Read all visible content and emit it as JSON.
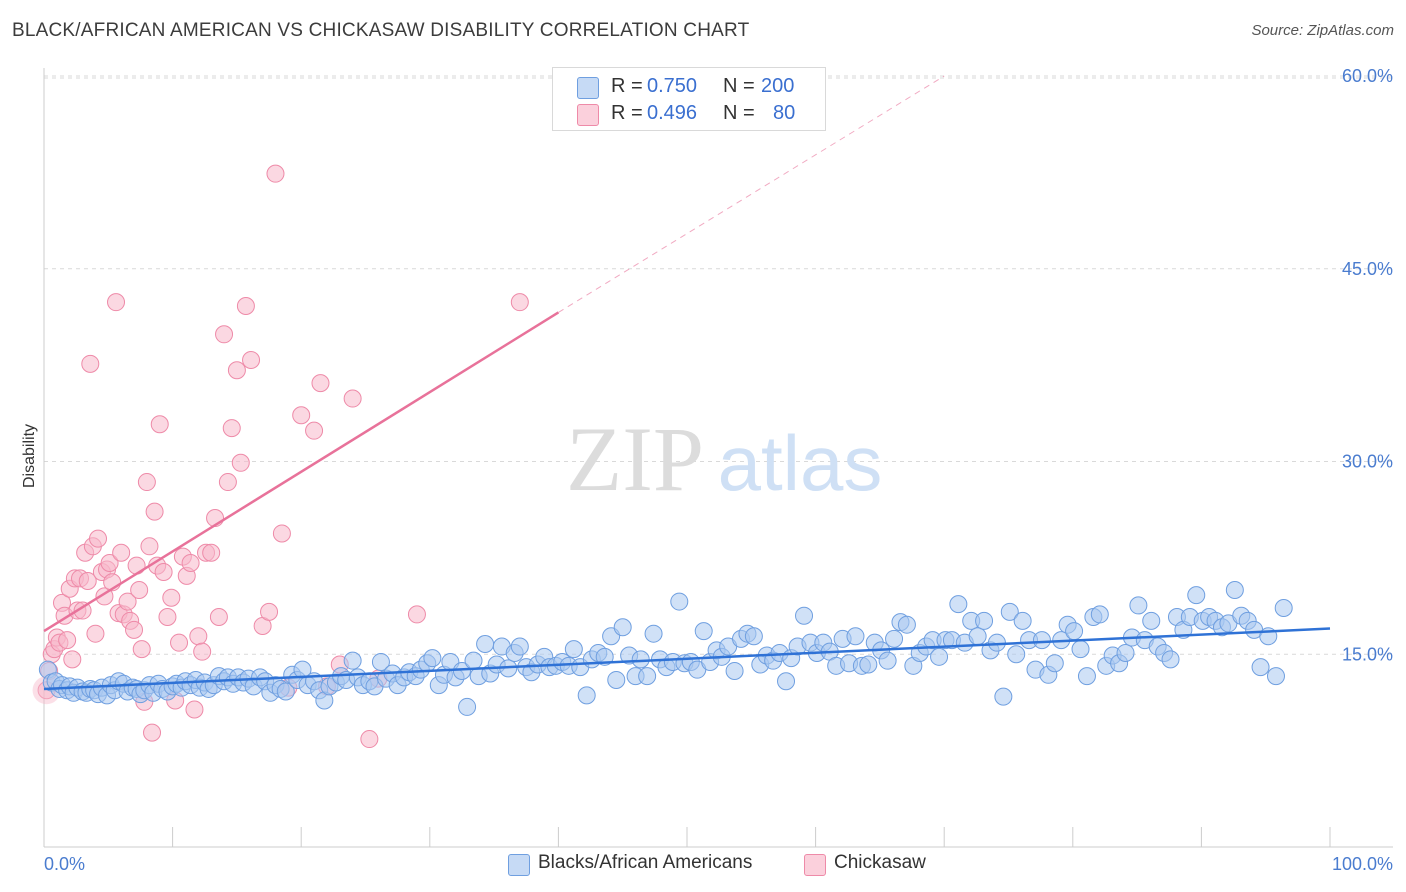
{
  "title": "BLACK/AFRICAN AMERICAN VS CHICKASAW DISABILITY CORRELATION CHART",
  "source": "Source: ZipAtlas.com",
  "watermark": {
    "zip": "ZIP",
    "atlas": "atlas"
  },
  "colors": {
    "blue_fill": "#aac8f0",
    "blue_stroke": "#6f9fe0",
    "blue_line": "#2f72d6",
    "pink_fill": "#f7b8ca",
    "pink_stroke": "#ee8aa8",
    "pink_line": "#e8729a",
    "grid": "#d9d9d9",
    "tick_label": "#4a7ccf"
  },
  "legend_top": [
    {
      "r_label": "R =",
      "r_value": "0.750",
      "n_label": "N =",
      "n_value": "200",
      "color": "#aac8f0"
    },
    {
      "r_label": "R =",
      "r_value": "0.496",
      "n_label": "N =",
      "n_value": "80",
      "color": "#f7b8ca"
    }
  ],
  "legend_bottom": [
    {
      "label": "Blacks/African Americans",
      "color": "#aac8f0"
    },
    {
      "label": "Chickasaw",
      "color": "#f7b8ca"
    }
  ],
  "chart_data": {
    "type": "scatter",
    "title": "BLACK/AFRICAN AMERICAN VS CHICKASAW DISABILITY CORRELATION CHART",
    "xlabel": "",
    "ylabel": "Disability",
    "xlim": [
      0,
      100
    ],
    "ylim": [
      0,
      66
    ],
    "x_tick_labels": [
      "0.0%",
      "100.0%"
    ],
    "y_ticks": [
      15,
      30,
      45,
      60
    ],
    "y_tick_labels": [
      "15.0%",
      "30.0%",
      "45.0%",
      "60.0%"
    ],
    "grid": "horizontal dashed",
    "legend": "top-center and bottom",
    "series": [
      {
        "name": "Blacks/African Americans",
        "r": 0.75,
        "n": 200,
        "trend": {
          "x": [
            0,
            100
          ],
          "y": [
            12.3,
            17.0
          ]
        },
        "points": [
          [
            0.3,
            13.8
          ],
          [
            0.6,
            12.8
          ],
          [
            0.9,
            12.9
          ],
          [
            1.2,
            12.3
          ],
          [
            1.4,
            12.6
          ],
          [
            1.8,
            12.2
          ],
          [
            2.0,
            12.5
          ],
          [
            2.3,
            12.0
          ],
          [
            2.6,
            12.4
          ],
          [
            3.0,
            12.1
          ],
          [
            3.3,
            12.0
          ],
          [
            3.6,
            12.3
          ],
          [
            3.9,
            12.2
          ],
          [
            4.2,
            11.9
          ],
          [
            4.5,
            12.4
          ],
          [
            4.9,
            11.8
          ],
          [
            5.2,
            12.6
          ],
          [
            5.5,
            12.2
          ],
          [
            5.8,
            12.9
          ],
          [
            6.2,
            12.7
          ],
          [
            6.5,
            12.1
          ],
          [
            6.9,
            12.4
          ],
          [
            7.2,
            12.3
          ],
          [
            7.5,
            11.9
          ],
          [
            7.8,
            12.2
          ],
          [
            8.2,
            12.6
          ],
          [
            8.5,
            12.0
          ],
          [
            8.9,
            12.7
          ],
          [
            9.2,
            12.3
          ],
          [
            9.6,
            12.1
          ],
          [
            10.0,
            12.5
          ],
          [
            10.3,
            12.7
          ],
          [
            10.7,
            12.4
          ],
          [
            11.0,
            12.9
          ],
          [
            11.4,
            12.6
          ],
          [
            11.8,
            13.0
          ],
          [
            12.1,
            12.4
          ],
          [
            12.5,
            12.8
          ],
          [
            12.8,
            12.3
          ],
          [
            13.2,
            12.6
          ],
          [
            13.6,
            13.3
          ],
          [
            14.0,
            12.9
          ],
          [
            14.3,
            13.2
          ],
          [
            14.7,
            12.7
          ],
          [
            15.1,
            13.2
          ],
          [
            15.5,
            12.8
          ],
          [
            15.9,
            13.1
          ],
          [
            16.3,
            12.5
          ],
          [
            16.8,
            13.2
          ],
          [
            17.2,
            12.9
          ],
          [
            17.6,
            12.0
          ],
          [
            18.0,
            12.6
          ],
          [
            18.4,
            12.3
          ],
          [
            18.8,
            12.1
          ],
          [
            19.3,
            13.4
          ],
          [
            19.7,
            13.0
          ],
          [
            20.1,
            13.8
          ],
          [
            20.5,
            12.6
          ],
          [
            21.0,
            12.9
          ],
          [
            21.4,
            12.2
          ],
          [
            21.8,
            11.4
          ],
          [
            22.2,
            12.5
          ],
          [
            22.7,
            12.8
          ],
          [
            23.1,
            13.3
          ],
          [
            23.5,
            13.0
          ],
          [
            24.0,
            14.5
          ],
          [
            24.4,
            13.2
          ],
          [
            24.8,
            12.6
          ],
          [
            25.3,
            12.9
          ],
          [
            25.7,
            12.5
          ],
          [
            26.2,
            14.4
          ],
          [
            26.6,
            13.1
          ],
          [
            27.1,
            13.5
          ],
          [
            27.5,
            12.6
          ],
          [
            28.0,
            13.2
          ],
          [
            28.4,
            13.6
          ],
          [
            28.9,
            13.3
          ],
          [
            29.3,
            13.8
          ],
          [
            29.8,
            14.3
          ],
          [
            30.2,
            14.7
          ],
          [
            30.7,
            12.6
          ],
          [
            31.1,
            13.4
          ],
          [
            31.6,
            14.4
          ],
          [
            32.0,
            13.2
          ],
          [
            32.5,
            13.7
          ],
          [
            32.9,
            10.9
          ],
          [
            33.4,
            14.5
          ],
          [
            33.8,
            13.3
          ],
          [
            34.3,
            15.8
          ],
          [
            34.7,
            13.5
          ],
          [
            35.2,
            14.2
          ],
          [
            35.6,
            15.6
          ],
          [
            36.1,
            13.9
          ],
          [
            36.6,
            15.1
          ],
          [
            37.0,
            15.6
          ],
          [
            37.5,
            14.0
          ],
          [
            37.9,
            13.6
          ],
          [
            38.4,
            14.2
          ],
          [
            38.9,
            14.8
          ],
          [
            39.3,
            14.0
          ],
          [
            39.8,
            14.1
          ],
          [
            40.3,
            14.4
          ],
          [
            40.8,
            14.1
          ],
          [
            41.2,
            15.4
          ],
          [
            41.7,
            14.0
          ],
          [
            42.2,
            11.8
          ],
          [
            42.6,
            14.6
          ],
          [
            43.1,
            15.1
          ],
          [
            43.6,
            14.8
          ],
          [
            44.1,
            16.4
          ],
          [
            44.5,
            13.0
          ],
          [
            45.0,
            17.1
          ],
          [
            45.5,
            14.9
          ],
          [
            46.0,
            13.3
          ],
          [
            46.4,
            14.6
          ],
          [
            46.9,
            13.3
          ],
          [
            47.4,
            16.6
          ],
          [
            47.9,
            14.6
          ],
          [
            48.4,
            14.0
          ],
          [
            48.9,
            14.4
          ],
          [
            49.4,
            19.1
          ],
          [
            49.8,
            14.3
          ],
          [
            50.3,
            14.4
          ],
          [
            50.8,
            13.8
          ],
          [
            51.3,
            16.8
          ],
          [
            51.8,
            14.4
          ],
          [
            52.3,
            15.3
          ],
          [
            52.7,
            14.8
          ],
          [
            53.2,
            15.6
          ],
          [
            53.7,
            13.7
          ],
          [
            54.2,
            16.2
          ],
          [
            54.7,
            16.6
          ],
          [
            55.2,
            16.4
          ],
          [
            55.7,
            14.2
          ],
          [
            56.2,
            14.9
          ],
          [
            56.7,
            14.5
          ],
          [
            57.2,
            15.1
          ],
          [
            57.7,
            12.9
          ],
          [
            58.1,
            14.7
          ],
          [
            58.6,
            15.6
          ],
          [
            59.1,
            18.0
          ],
          [
            59.6,
            15.9
          ],
          [
            60.1,
            15.1
          ],
          [
            60.6,
            15.9
          ],
          [
            61.1,
            15.2
          ],
          [
            61.6,
            14.1
          ],
          [
            62.1,
            16.2
          ],
          [
            62.6,
            14.3
          ],
          [
            63.1,
            16.4
          ],
          [
            63.6,
            14.1
          ],
          [
            64.1,
            14.2
          ],
          [
            64.6,
            15.9
          ],
          [
            65.1,
            15.3
          ],
          [
            65.6,
            14.5
          ],
          [
            66.1,
            16.2
          ],
          [
            66.6,
            17.5
          ],
          [
            67.1,
            17.3
          ],
          [
            67.6,
            14.1
          ],
          [
            68.1,
            15.1
          ],
          [
            68.6,
            15.6
          ],
          [
            69.1,
            16.1
          ],
          [
            69.6,
            14.8
          ],
          [
            70.1,
            16.1
          ],
          [
            70.6,
            16.1
          ],
          [
            71.1,
            18.9
          ],
          [
            71.6,
            15.9
          ],
          [
            72.1,
            17.6
          ],
          [
            72.6,
            16.4
          ],
          [
            73.1,
            17.6
          ],
          [
            73.6,
            15.3
          ],
          [
            74.1,
            15.9
          ],
          [
            74.6,
            11.7
          ],
          [
            75.1,
            18.3
          ],
          [
            75.6,
            15.0
          ],
          [
            76.1,
            17.6
          ],
          [
            76.6,
            16.1
          ],
          [
            77.1,
            13.8
          ],
          [
            77.6,
            16.1
          ],
          [
            78.1,
            13.4
          ],
          [
            78.6,
            14.3
          ],
          [
            79.1,
            16.1
          ],
          [
            79.6,
            17.3
          ],
          [
            80.1,
            16.8
          ],
          [
            80.6,
            15.4
          ],
          [
            81.1,
            13.3
          ],
          [
            81.6,
            17.9
          ],
          [
            82.1,
            18.1
          ],
          [
            82.6,
            14.1
          ],
          [
            83.1,
            14.9
          ],
          [
            83.6,
            14.3
          ],
          [
            84.1,
            15.1
          ],
          [
            84.6,
            16.3
          ],
          [
            85.1,
            18.8
          ],
          [
            85.6,
            16.1
          ],
          [
            86.1,
            17.6
          ],
          [
            86.6,
            15.6
          ],
          [
            87.1,
            15.1
          ],
          [
            87.6,
            14.6
          ],
          [
            88.1,
            17.9
          ],
          [
            88.6,
            16.9
          ],
          [
            89.1,
            17.9
          ],
          [
            89.6,
            19.6
          ],
          [
            90.1,
            17.6
          ],
          [
            90.6,
            17.9
          ],
          [
            91.1,
            17.6
          ],
          [
            91.6,
            17.1
          ],
          [
            92.1,
            17.4
          ],
          [
            92.6,
            20.0
          ],
          [
            93.1,
            18.0
          ],
          [
            93.6,
            17.6
          ],
          [
            94.1,
            16.9
          ],
          [
            94.6,
            14.0
          ],
          [
            95.2,
            16.4
          ],
          [
            95.8,
            13.3
          ],
          [
            96.4,
            18.6
          ]
        ]
      },
      {
        "name": "Chickasaw",
        "r": 0.496,
        "n": 80,
        "trend": {
          "x": [
            0,
            40
          ],
          "y": [
            16.8,
            41.6
          ]
        },
        "trend_extension": {
          "x": [
            40,
            70
          ],
          "y": [
            41.6,
            60.0
          ]
        },
        "points": [
          [
            0.2,
            12.2
          ],
          [
            0.4,
            13.7
          ],
          [
            0.6,
            15.0
          ],
          [
            0.8,
            15.4
          ],
          [
            1.0,
            16.3
          ],
          [
            1.2,
            15.9
          ],
          [
            1.4,
            19.0
          ],
          [
            1.6,
            18.0
          ],
          [
            1.8,
            16.1
          ],
          [
            2.0,
            20.1
          ],
          [
            2.2,
            14.6
          ],
          [
            2.4,
            20.9
          ],
          [
            2.6,
            18.4
          ],
          [
            2.8,
            20.9
          ],
          [
            3.0,
            18.4
          ],
          [
            3.2,
            22.9
          ],
          [
            3.4,
            20.7
          ],
          [
            3.6,
            37.6
          ],
          [
            3.8,
            23.4
          ],
          [
            4.0,
            16.6
          ],
          [
            4.2,
            24.0
          ],
          [
            4.5,
            21.4
          ],
          [
            4.7,
            19.5
          ],
          [
            4.9,
            21.6
          ],
          [
            5.1,
            22.1
          ],
          [
            5.3,
            20.6
          ],
          [
            5.6,
            42.4
          ],
          [
            5.8,
            18.2
          ],
          [
            6.0,
            22.9
          ],
          [
            6.2,
            18.1
          ],
          [
            6.5,
            19.1
          ],
          [
            6.7,
            17.6
          ],
          [
            7.0,
            16.9
          ],
          [
            7.2,
            21.9
          ],
          [
            7.4,
            20.0
          ],
          [
            7.6,
            15.4
          ],
          [
            7.8,
            11.3
          ],
          [
            8.0,
            28.4
          ],
          [
            8.2,
            23.4
          ],
          [
            8.4,
            8.9
          ],
          [
            8.6,
            26.1
          ],
          [
            8.8,
            21.9
          ],
          [
            9.0,
            32.9
          ],
          [
            9.3,
            21.4
          ],
          [
            9.6,
            17.9
          ],
          [
            9.9,
            19.4
          ],
          [
            10.2,
            11.4
          ],
          [
            10.5,
            15.9
          ],
          [
            10.8,
            22.6
          ],
          [
            11.1,
            21.1
          ],
          [
            11.4,
            22.1
          ],
          [
            11.7,
            10.7
          ],
          [
            12.0,
            16.4
          ],
          [
            12.3,
            15.2
          ],
          [
            12.6,
            22.9
          ],
          [
            13.0,
            22.9
          ],
          [
            13.3,
            25.6
          ],
          [
            13.6,
            17.9
          ],
          [
            14.0,
            39.9
          ],
          [
            14.3,
            28.4
          ],
          [
            14.6,
            32.6
          ],
          [
            15.0,
            37.1
          ],
          [
            15.3,
            29.9
          ],
          [
            15.7,
            42.1
          ],
          [
            16.1,
            37.9
          ],
          [
            17.0,
            17.2
          ],
          [
            17.5,
            18.3
          ],
          [
            18.0,
            52.4
          ],
          [
            18.5,
            24.4
          ],
          [
            19.0,
            12.4
          ],
          [
            20.0,
            33.6
          ],
          [
            21.0,
            32.4
          ],
          [
            21.5,
            36.1
          ],
          [
            22.0,
            12.5
          ],
          [
            23.0,
            14.2
          ],
          [
            24.0,
            34.9
          ],
          [
            25.3,
            8.4
          ],
          [
            26.0,
            13.1
          ],
          [
            29.0,
            18.1
          ],
          [
            37.0,
            42.4
          ]
        ]
      }
    ]
  }
}
